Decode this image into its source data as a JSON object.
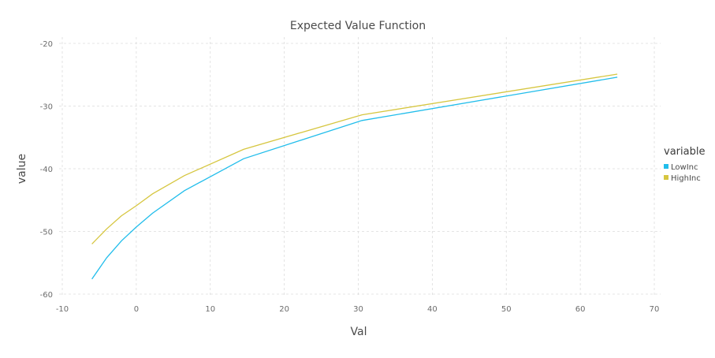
{
  "chart_data": {
    "type": "line",
    "title": "Expected Value Function",
    "xlabel": "Val",
    "ylabel": "value",
    "xlim": [
      -10,
      70
    ],
    "ylim": [
      -60,
      -20
    ],
    "xticks": [
      "-10",
      "0",
      "10",
      "20",
      "30",
      "40",
      "50",
      "60",
      "70"
    ],
    "yticks": [
      "-20",
      "-30",
      "-40",
      "-50",
      "-60"
    ],
    "grid": true,
    "legend": {
      "title": "variable",
      "position": "right"
    },
    "series": [
      {
        "name": "LowInc",
        "color": "#21bdeb",
        "x": [
          -6,
          -4,
          -2,
          0,
          2.2,
          6.5,
          14.5,
          30.5,
          65
        ],
        "y": [
          -57.6,
          -54.2,
          -51.5,
          -49.3,
          -47.1,
          -43.5,
          -38.4,
          -32.3,
          -25.4
        ]
      },
      {
        "name": "HighInc",
        "color": "#d6c640",
        "x": [
          -6,
          -4,
          -2,
          0,
          2.2,
          6.5,
          14.5,
          30.5,
          65
        ],
        "y": [
          -52.0,
          -49.6,
          -47.5,
          -45.9,
          -44.0,
          -41.1,
          -36.9,
          -31.4,
          -24.9
        ]
      }
    ]
  }
}
